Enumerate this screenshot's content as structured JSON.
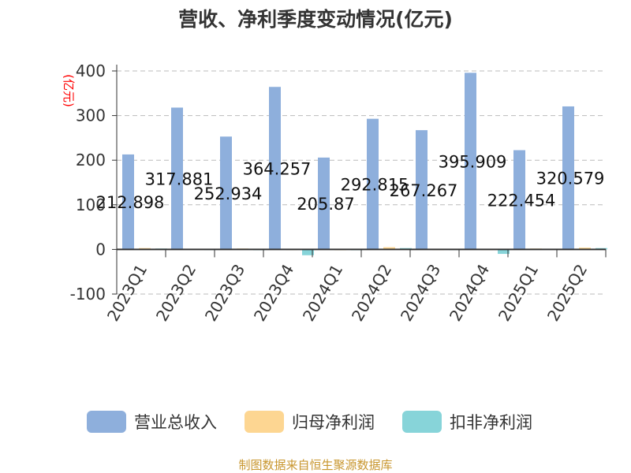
{
  "chart_data": {
    "type": "bar",
    "title": "营收、净利季度变动情况(亿元)",
    "ylabel": "(亿元)",
    "ylim": [
      -100,
      400
    ],
    "yticks": [
      -100,
      0,
      100,
      200,
      300,
      400
    ],
    "grid": true,
    "legend_position": "bottom",
    "categories": [
      "2023Q1",
      "2023Q2",
      "2023Q3",
      "2023Q4",
      "2024Q1",
      "2024Q2",
      "2024Q3",
      "2024Q4",
      "2025Q1",
      "2025Q2"
    ],
    "series": [
      {
        "name": "营业总收入",
        "color": "#8eafdc",
        "values": [
          212.898,
          317.881,
          252.934,
          364.257,
          205.87,
          292.815,
          267.267,
          395.909,
          222.454,
          320.579
        ],
        "labels": [
          "212.898",
          "317.881",
          "252.934",
          "364.257",
          "205.87",
          "292.815",
          "267.267",
          "395.909",
          "222.454",
          "320.579"
        ]
      },
      {
        "name": "归母净利润",
        "color": "#fdd692",
        "values": [
          3,
          1.5,
          2,
          0.3,
          -0.5,
          5,
          0.3,
          0.3,
          2,
          4
        ]
      },
      {
        "name": "扣非净利润",
        "color": "#87d4d9",
        "values": [
          2,
          0.3,
          -1.5,
          -13,
          -0.5,
          3,
          0.3,
          -10,
          1.5,
          3
        ]
      }
    ]
  },
  "footer": "制图数据来自恒生聚源数据库"
}
